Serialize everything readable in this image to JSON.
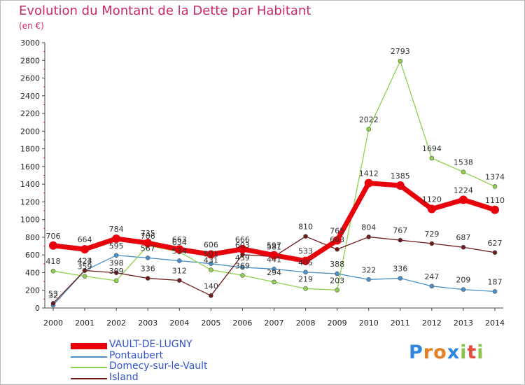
{
  "title": "Evolution du Montant de la Dette par Habitant",
  "subtitle": "(en €)",
  "brand": {
    "letters": [
      "P",
      "r",
      "o",
      "x",
      "i",
      "t",
      "i"
    ],
    "colors": [
      "#2e86de",
      "#e67e22",
      "#e67e22",
      "#2e86de",
      "#8bc34a",
      "#e74c3c",
      "#8bc34a"
    ]
  },
  "chart_data": {
    "type": "line",
    "x": [
      "2000",
      "2001",
      "2002",
      "2003",
      "2004",
      "2005",
      "2006",
      "2007",
      "2008",
      "2009",
      "2010",
      "2011",
      "2012",
      "2013",
      "2014"
    ],
    "ylim": [
      0,
      3000
    ],
    "y_ticks": [
      "0",
      "200",
      "400",
      "600",
      "800",
      "1000",
      "1200",
      "1400",
      "1600",
      "1800",
      "2000",
      "2200",
      "2400",
      "2600",
      "2800",
      "3000"
    ],
    "grid": false,
    "legend_position": "bottom-left",
    "series": [
      {
        "name": "VAULT-DE-LUGNY",
        "color": "#e8000a",
        "values": [
          706,
          664,
          784,
          735,
          663,
          606,
          666,
          597,
          533,
          765,
          1412,
          1385,
          1120,
          1224,
          1110
        ],
        "labels": [
          "706",
          "664",
          "784",
          "735",
          "663",
          "606",
          "666",
          "597",
          "533",
          "765",
          "1412",
          "1385",
          "1120",
          "1224",
          "1110"
        ]
      },
      {
        "name": "Pontaubert",
        "color": "#4a90c8",
        "values": [
          32,
          423,
          595,
          567,
          534,
          501,
          459,
          441,
          405,
          388,
          322,
          336,
          247,
          209,
          187
        ],
        "labels": [
          "32",
          "423",
          "595",
          "567",
          "534",
          "501",
          "459",
          "441",
          "405",
          "388",
          "322",
          "336",
          "247",
          "209",
          "187"
        ]
      },
      {
        "name": "Domecy-sur-le-Vault",
        "color": "#8fd24a",
        "values": [
          418,
          359,
          309,
          706,
          634,
          431,
          369,
          294,
          219,
          203,
          2022,
          2793,
          1694,
          1538,
          1374
        ],
        "labels": [
          "418",
          "359",
          "309",
          "706",
          "634",
          "431",
          "369",
          "294",
          "219",
          "203",
          "2022",
          "2793",
          "1694",
          "1538",
          "1374"
        ]
      },
      {
        "name": "Island",
        "color": "#6e1a1a",
        "values": [
          53,
          424,
          398,
          336,
          312,
          140,
          603,
          581,
          810,
          663,
          804,
          767,
          729,
          687,
          627
        ],
        "labels": [
          "53",
          "424",
          "398",
          "336",
          "312",
          "140",
          "603",
          "581",
          "810",
          "663",
          "804",
          "767",
          "729",
          "687",
          "627"
        ]
      }
    ]
  }
}
